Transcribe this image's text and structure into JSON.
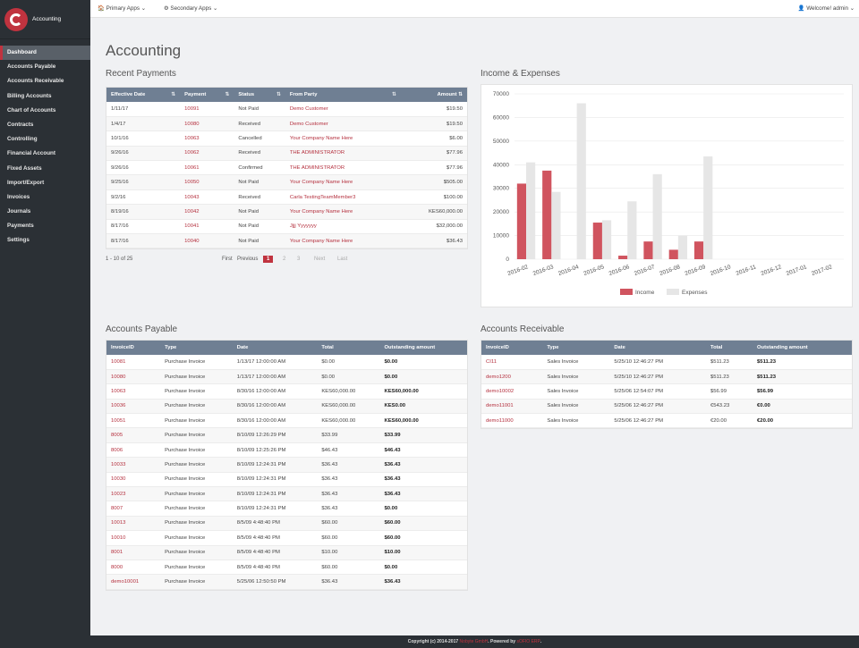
{
  "app": {
    "title": "Accounting"
  },
  "topbar": {
    "primary": "Primary Apps",
    "secondary": "Secondary Apps",
    "welcome": "Welcome! admin"
  },
  "sidebar": {
    "items": [
      "Dashboard",
      "Accounts Payable",
      "Accounts Receivable",
      "Billing Accounts",
      "Chart of Accounts",
      "Contracts",
      "Controlling",
      "Financial Account",
      "Fixed Assets",
      "Import/Export",
      "Invoices",
      "Journals",
      "Payments",
      "Settings"
    ]
  },
  "page": {
    "title": "Accounting"
  },
  "recent_payments": {
    "title": "Recent Payments",
    "headers": [
      "Effective Date",
      "Payment",
      "Status",
      "From Party",
      "Amount"
    ],
    "rows": [
      [
        "1/11/17",
        "10091",
        "Not Paid",
        "Demo Customer",
        "$19.50"
      ],
      [
        "1/4/17",
        "10080",
        "Received",
        "Demo Customer",
        "$19.50"
      ],
      [
        "10/1/16",
        "10063",
        "Cancelled",
        "Your Company Name Here",
        "$6.00"
      ],
      [
        "9/26/16",
        "10062",
        "Received",
        "THE ADMINISTRATOR",
        "$77.96"
      ],
      [
        "9/26/16",
        "10061",
        "Confirmed",
        "THE ADMINISTRATOR",
        "$77.96"
      ],
      [
        "9/25/16",
        "10050",
        "Not Paid",
        "Your Company Name Here",
        "$505.00"
      ],
      [
        "9/2/16",
        "10043",
        "Received",
        "Carla TestingTeamMember3",
        "$100.00"
      ],
      [
        "8/19/16",
        "10042",
        "Not Paid",
        "Your Company Name Here",
        "KES60,000.00"
      ],
      [
        "8/17/16",
        "10041",
        "Not Paid",
        "Jjjj Yyyyyyy",
        "$32,000.00"
      ],
      [
        "8/17/16",
        "10040",
        "Not Paid",
        "Your Company Name Here",
        "$36.43"
      ]
    ],
    "range": "1 - 10 of 25",
    "pager": {
      "first": "First",
      "previous": "Previous",
      "current": "1",
      "p2": "2",
      "p3": "3",
      "next": "Next",
      "last": "Last"
    }
  },
  "chart": {
    "title": "Income & Expenses"
  },
  "chart_data": {
    "type": "bar",
    "categories": [
      "2016-02",
      "2016-03",
      "2016-04",
      "2016-05",
      "2016-06",
      "2016-07",
      "2016-08",
      "2016-09",
      "2016-10",
      "2016-11",
      "2016-12",
      "2017-01",
      "2017-02"
    ],
    "series": [
      {
        "name": "Income",
        "values": [
          32000,
          37500,
          0,
          15500,
          1500,
          7500,
          4000,
          7500,
          0,
          0,
          0,
          0,
          0
        ],
        "color": "#d0545f"
      },
      {
        "name": "Expenses",
        "values": [
          41000,
          28500,
          66000,
          16500,
          24500,
          36000,
          10000,
          43500,
          0,
          0,
          0,
          0,
          0
        ],
        "color": "#e6e6e6"
      }
    ],
    "yticks": [
      "0",
      "10000",
      "20000",
      "30000",
      "40000",
      "50000",
      "60000",
      "70000"
    ],
    "ylim": [
      0,
      70000
    ],
    "legend": "bottom"
  },
  "payable": {
    "title": "Accounts Payable",
    "headers": [
      "InvoiceID",
      "Type",
      "Date",
      "Total",
      "Outstanding amount"
    ],
    "rows": [
      [
        "10081",
        "Purchase Invoice",
        "1/13/17 12:00:00 AM",
        "$0.00",
        "$0.00"
      ],
      [
        "10080",
        "Purchase Invoice",
        "1/13/17 12:00:00 AM",
        "$0.00",
        "$0.00"
      ],
      [
        "10063",
        "Purchase Invoice",
        "8/30/16 12:00:00 AM",
        "KES60,000.00",
        "KES60,000.00"
      ],
      [
        "10036",
        "Purchase Invoice",
        "8/30/16 12:00:00 AM",
        "KES60,000.00",
        "KES0.00"
      ],
      [
        "10051",
        "Purchase Invoice",
        "8/30/16 12:00:00 AM",
        "KES60,000.00",
        "KES60,000.00"
      ],
      [
        "8005",
        "Purchase Invoice",
        "8/10/09 12:26:29 PM",
        "$33.99",
        "$33.99"
      ],
      [
        "8006",
        "Purchase Invoice",
        "8/10/09 12:25:26 PM",
        "$46.43",
        "$46.43"
      ],
      [
        "10033",
        "Purchase Invoice",
        "8/10/09 12:24:31 PM",
        "$36.43",
        "$36.43"
      ],
      [
        "10030",
        "Purchase Invoice",
        "8/10/09 12:24:31 PM",
        "$36.43",
        "$36.43"
      ],
      [
        "10023",
        "Purchase Invoice",
        "8/10/09 12:24:31 PM",
        "$36.43",
        "$36.43"
      ],
      [
        "8007",
        "Purchase Invoice",
        "8/10/09 12:24:31 PM",
        "$36.43",
        "$0.00"
      ],
      [
        "10013",
        "Purchase Invoice",
        "8/5/09 4:48:40 PM",
        "$60.00",
        "$60.00"
      ],
      [
        "10010",
        "Purchase Invoice",
        "8/5/09 4:48:40 PM",
        "$60.00",
        "$60.00"
      ],
      [
        "8001",
        "Purchase Invoice",
        "8/5/09 4:48:40 PM",
        "$10.00",
        "$10.00"
      ],
      [
        "8000",
        "Purchase Invoice",
        "8/5/09 4:48:40 PM",
        "$60.00",
        "$0.00"
      ],
      [
        "demo10001",
        "Purchase Invoice",
        "5/25/06 12:50:50 PM",
        "$36.43",
        "$36.43"
      ]
    ]
  },
  "receivable": {
    "title": "Accounts Receivable",
    "headers": [
      "InvoiceID",
      "Type",
      "Date",
      "Total",
      "Outstanding amount"
    ],
    "rows": [
      [
        "CI11",
        "Sales Invoice",
        "5/25/10 12:46:27 PM",
        "$511.23",
        "$511.23"
      ],
      [
        "demo1200",
        "Sales Invoice",
        "5/25/10 12:46:27 PM",
        "$511.23",
        "$511.23"
      ],
      [
        "demo10002",
        "Sales Invoice",
        "5/25/06 12:54:07 PM",
        "$56.99",
        "$56.99"
      ],
      [
        "demo11001",
        "Sales Invoice",
        "5/25/06 12:46:27 PM",
        "€543.23",
        "€0.00"
      ],
      [
        "demo11000",
        "Sales Invoice",
        "5/25/06 12:46:27 PM",
        "€20.00",
        "€20.00"
      ]
    ]
  },
  "footer": {
    "copyright": "Copyright (c) 2014-2017",
    "company": "Nobyte GmbH",
    "powered": ". Powered by",
    "product": "sOFIO ERP",
    "period": "."
  }
}
